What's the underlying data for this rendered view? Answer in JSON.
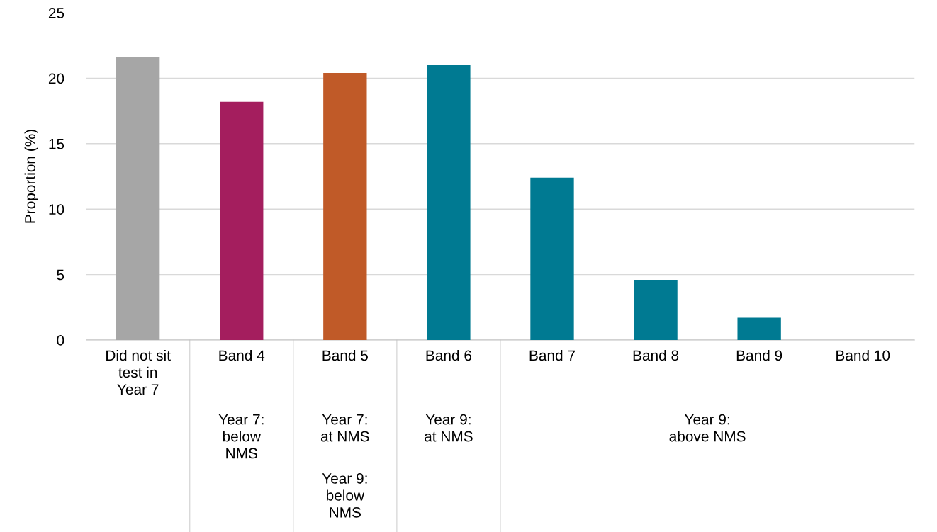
{
  "chart_data": {
    "type": "bar",
    "ylabel": "Proportion (%)",
    "categories": [
      "Did not sit\ntest in\nYear 7",
      "Band 4",
      "Band 5",
      "Band 6",
      "Band 7",
      "Band 8",
      "Band 9",
      "Band 10"
    ],
    "values": [
      21.6,
      18.2,
      20.4,
      21.0,
      12.4,
      4.6,
      1.7,
      0
    ],
    "colors": [
      "#a6a6a6",
      "#a41e5e",
      "#c05a28",
      "#007a92",
      "#007a92",
      "#007a92",
      "#007a92",
      "#007a92"
    ],
    "ylim": [
      0,
      25
    ],
    "yticks": [
      0,
      5,
      10,
      15,
      20,
      25
    ],
    "grid": "y",
    "annotations": [
      "Year 7:\nbelow\nNMS",
      "Year 7:\nat NMS",
      "Year 9:\nbelow\nNMS",
      "Year 9:\nat NMS",
      "Year 9:\nabove NMS"
    ]
  }
}
